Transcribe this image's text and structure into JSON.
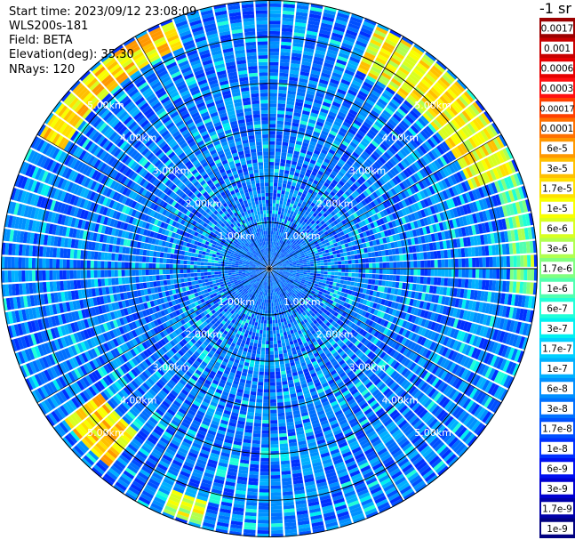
{
  "header": {
    "start_time": "Start time: 2023/09/12 23:08:09",
    "instrument": "WLS200s-181",
    "field": "Field: BETA",
    "elevation": "Elevation(deg): 35.30",
    "nrays": "NRays: 120"
  },
  "colorbar": {
    "unit_label": "-1 sr",
    "levels": [
      {
        "label": "0.0017",
        "color": "#9b0000"
      },
      {
        "label": "0.001",
        "color": "#c80000"
      },
      {
        "label": "0.0006",
        "color": "#e60000"
      },
      {
        "label": "0.0003",
        "color": "#ff1010"
      },
      {
        "label": "0.00017",
        "color": "#ff4000"
      },
      {
        "label": "0.0001",
        "color": "#ff7000"
      },
      {
        "label": "6e-5",
        "color": "#ff9800"
      },
      {
        "label": "3e-5",
        "color": "#ffc000"
      },
      {
        "label": "1.7e-5",
        "color": "#ffe000"
      },
      {
        "label": "1e-5",
        "color": "#f8ff00"
      },
      {
        "label": "6e-6",
        "color": "#d8ff20"
      },
      {
        "label": "3e-6",
        "color": "#b0ff50"
      },
      {
        "label": "1.7e-6",
        "color": "#80ff80"
      },
      {
        "label": "1e-6",
        "color": "#50ffb0"
      },
      {
        "label": "6e-7",
        "color": "#20ffd8"
      },
      {
        "label": "3e-7",
        "color": "#00f0f0"
      },
      {
        "label": "1.7e-7",
        "color": "#00d0ff"
      },
      {
        "label": "1e-7",
        "color": "#00b0ff"
      },
      {
        "label": "6e-8",
        "color": "#0090ff"
      },
      {
        "label": "3e-8",
        "color": "#0070ff"
      },
      {
        "label": "1.7e-8",
        "color": "#0050ff"
      },
      {
        "label": "1e-8",
        "color": "#0030ff"
      },
      {
        "label": "6e-9",
        "color": "#0010f0"
      },
      {
        "label": "3e-9",
        "color": "#0000d0"
      },
      {
        "label": "1.7e-9",
        "color": "#0000a8"
      },
      {
        "label": "1e-9",
        "color": "#000080"
      }
    ]
  },
  "chart_data": {
    "type": "heatmap",
    "projection": "polar-ppi",
    "field": "BETA",
    "elevation_deg": 35.3,
    "n_rays": 120,
    "range_rings_km": [
      1.0,
      2.0,
      3.0,
      4.0,
      5.0
    ],
    "range_ring_labels": [
      "1.00km",
      "2.00km",
      "3.00km",
      "4.00km",
      "5.00km"
    ],
    "max_range_km": 5.8,
    "spoke_angles_deg": [
      0,
      30,
      60,
      90,
      120,
      150,
      180,
      210,
      240,
      270,
      300,
      330
    ],
    "dominant_level": "3e-8",
    "high_backscatter_arcs": [
      {
        "azimuth_start_deg": 25,
        "azimuth_end_deg": 70,
        "range_start_km": 4.7,
        "range_end_km": 5.7,
        "level": "1.7e-5"
      },
      {
        "azimuth_start_deg": 70,
        "azimuth_end_deg": 95,
        "range_start_km": 5.2,
        "range_end_km": 5.7,
        "level": "3e-6"
      },
      {
        "azimuth_start_deg": 300,
        "azimuth_end_deg": 340,
        "range_start_km": 5.1,
        "range_end_km": 5.7,
        "level": "3e-5"
      },
      {
        "azimuth_start_deg": 218,
        "azimuth_end_deg": 235,
        "range_start_km": 4.5,
        "range_end_km": 5.5,
        "level": "3e-5"
      },
      {
        "azimuth_start_deg": 195,
        "azimuth_end_deg": 205,
        "range_start_km": 5.2,
        "range_end_km": 5.7,
        "level": "1e-5"
      }
    ],
    "grid": true,
    "legend": "right"
  }
}
